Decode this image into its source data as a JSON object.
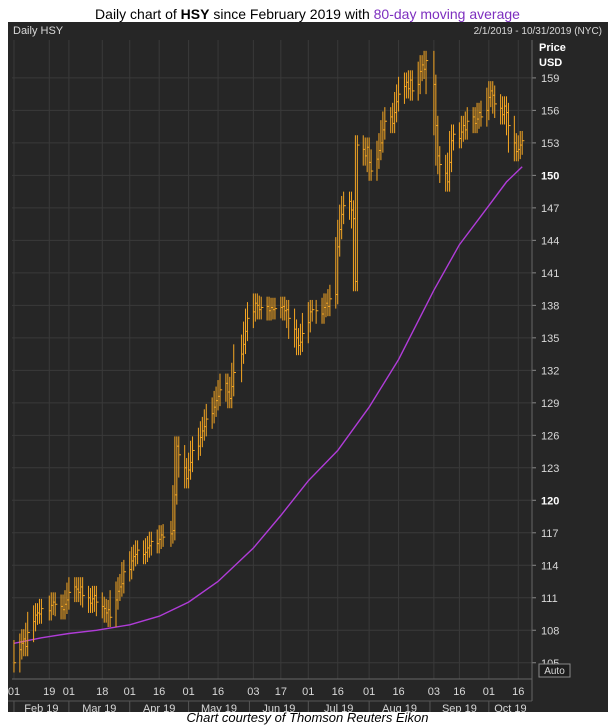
{
  "title": {
    "prefix": "Daily chart of ",
    "ticker": "HSY",
    "middle": " since February 2019 with ",
    "ma_label": "80-day moving average"
  },
  "panel": {
    "label": "Daily HSY",
    "range": "2/1/2019 - 10/31/2019 (NYC)",
    "currency_top": "Price",
    "currency_bottom": "USD",
    "auto": "Auto"
  },
  "caption": "Chart courtesy of Thomson Reuters Eikon",
  "colors": {
    "price": "#f5a623",
    "ma": "#b03cd8",
    "grid": "#3a3a3a",
    "bg": "#262626",
    "text": "#d8d8d8"
  },
  "chart_data": {
    "type": "line",
    "title": "Daily chart of HSY since February 2019 with 80-day moving average",
    "xlabel": "",
    "ylabel": "Price USD",
    "ylim": [
      103.5,
      162.5
    ],
    "y_ticks": [
      105,
      108,
      111,
      114,
      117,
      120,
      123,
      126,
      129,
      132,
      135,
      138,
      141,
      144,
      147,
      150,
      153,
      156,
      159
    ],
    "y_bold_ticks": [
      120,
      150
    ],
    "x_ticks": [
      {
        "date": "2019-02-01",
        "label": "01"
      },
      {
        "date": "2019-02-19",
        "label": "19"
      },
      {
        "date": "2019-03-01",
        "label": "01"
      },
      {
        "date": "2019-03-18",
        "label": "18"
      },
      {
        "date": "2019-04-01",
        "label": "01"
      },
      {
        "date": "2019-04-16",
        "label": "16"
      },
      {
        "date": "2019-05-01",
        "label": "01"
      },
      {
        "date": "2019-05-16",
        "label": "16"
      },
      {
        "date": "2019-06-03",
        "label": "03"
      },
      {
        "date": "2019-06-17",
        "label": "17"
      },
      {
        "date": "2019-07-01",
        "label": "01"
      },
      {
        "date": "2019-07-16",
        "label": "16"
      },
      {
        "date": "2019-08-01",
        "label": "01"
      },
      {
        "date": "2019-08-16",
        "label": "16"
      },
      {
        "date": "2019-09-03",
        "label": "03"
      },
      {
        "date": "2019-09-16",
        "label": "16"
      },
      {
        "date": "2019-10-01",
        "label": "01"
      },
      {
        "date": "2019-10-16",
        "label": "16"
      }
    ],
    "months": [
      {
        "date": "2019-02-01",
        "label": "Feb 19"
      },
      {
        "date": "2019-03-01",
        "label": "Mar 19"
      },
      {
        "date": "2019-04-01",
        "label": "Apr 19"
      },
      {
        "date": "2019-05-01",
        "label": "May 19"
      },
      {
        "date": "2019-06-01",
        "label": "Jun 19"
      },
      {
        "date": "2019-07-01",
        "label": "Jul 19"
      },
      {
        "date": "2019-08-01",
        "label": "Aug 19"
      },
      {
        "date": "2019-09-01",
        "label": "Sep 19"
      },
      {
        "date": "2019-10-01",
        "label": "Oct 19"
      }
    ],
    "series": [
      {
        "style": "bars",
        "points": [
          [
            "2019-02-01",
            105.0
          ],
          [
            "2019-02-04",
            106.2
          ],
          [
            "2019-02-05",
            106.8
          ],
          [
            "2019-02-06",
            107.2
          ],
          [
            "2019-02-07",
            106.5
          ],
          [
            "2019-02-08",
            107.8
          ],
          [
            "2019-02-11",
            108.8
          ],
          [
            "2019-02-12",
            109.4
          ],
          [
            "2019-02-13",
            109.6
          ],
          [
            "2019-02-14",
            109.5
          ],
          [
            "2019-02-15",
            110.0
          ],
          [
            "2019-02-19",
            109.8
          ],
          [
            "2019-02-20",
            110.3
          ],
          [
            "2019-02-21",
            110.6
          ],
          [
            "2019-02-22",
            110.4
          ],
          [
            "2019-02-25",
            110.2
          ],
          [
            "2019-02-26",
            109.9
          ],
          [
            "2019-02-27",
            110.4
          ],
          [
            "2019-02-28",
            110.8
          ],
          [
            "2019-03-01",
            111.5
          ],
          [
            "2019-03-04",
            112.0
          ],
          [
            "2019-03-05",
            111.8
          ],
          [
            "2019-03-06",
            111.5
          ],
          [
            "2019-03-07",
            112.0
          ],
          [
            "2019-03-08",
            111.2
          ],
          [
            "2019-03-11",
            111.0
          ],
          [
            "2019-03-12",
            110.5
          ],
          [
            "2019-03-13",
            110.9
          ],
          [
            "2019-03-14",
            111.2
          ],
          [
            "2019-03-15",
            110.6
          ],
          [
            "2019-03-18",
            110.2
          ],
          [
            "2019-03-19",
            110.0
          ],
          [
            "2019-03-20",
            109.6
          ],
          [
            "2019-03-21",
            109.9
          ],
          [
            "2019-03-22",
            109.2
          ],
          [
            "2019-03-25",
            110.8
          ],
          [
            "2019-03-26",
            111.6
          ],
          [
            "2019-03-27",
            112.0
          ],
          [
            "2019-03-28",
            112.3
          ],
          [
            "2019-03-29",
            113.4
          ],
          [
            "2019-04-01",
            113.6
          ],
          [
            "2019-04-02",
            114.4
          ],
          [
            "2019-04-03",
            114.8
          ],
          [
            "2019-04-04",
            115.0
          ],
          [
            "2019-04-05",
            115.4
          ],
          [
            "2019-04-08",
            115.0
          ],
          [
            "2019-04-09",
            115.2
          ],
          [
            "2019-04-10",
            115.6
          ],
          [
            "2019-04-11",
            115.8
          ],
          [
            "2019-04-12",
            116.2
          ],
          [
            "2019-04-15",
            116.0
          ],
          [
            "2019-04-16",
            116.4
          ],
          [
            "2019-04-17",
            116.8
          ],
          [
            "2019-04-18",
            116.6
          ],
          [
            "2019-04-22",
            116.9
          ],
          [
            "2019-04-23",
            117.2
          ],
          [
            "2019-04-24",
            120.5
          ],
          [
            "2019-04-25",
            125.0
          ],
          [
            "2019-04-26",
            124.2
          ],
          [
            "2019-04-29",
            123.0
          ],
          [
            "2019-04-30",
            122.0
          ],
          [
            "2019-05-01",
            122.8
          ],
          [
            "2019-05-02",
            123.5
          ],
          [
            "2019-05-03",
            124.6
          ],
          [
            "2019-05-06",
            125.0
          ],
          [
            "2019-05-07",
            125.8
          ],
          [
            "2019-05-08",
            126.4
          ],
          [
            "2019-05-09",
            126.8
          ],
          [
            "2019-05-10",
            127.5
          ],
          [
            "2019-05-13",
            128.0
          ],
          [
            "2019-05-14",
            128.6
          ],
          [
            "2019-05-15",
            129.2
          ],
          [
            "2019-05-16",
            129.6
          ],
          [
            "2019-05-17",
            130.2
          ],
          [
            "2019-05-20",
            130.8
          ],
          [
            "2019-05-21",
            130.0
          ],
          [
            "2019-05-22",
            129.4
          ],
          [
            "2019-05-23",
            130.5
          ],
          [
            "2019-05-24",
            131.8
          ],
          [
            "2019-05-28",
            133.5
          ],
          [
            "2019-05-29",
            134.4
          ],
          [
            "2019-05-30",
            135.6
          ],
          [
            "2019-05-31",
            136.8
          ],
          [
            "2019-06-03",
            137.4
          ],
          [
            "2019-06-04",
            138.2
          ],
          [
            "2019-06-05",
            138.0
          ],
          [
            "2019-06-06",
            137.6
          ],
          [
            "2019-06-07",
            137.8
          ],
          [
            "2019-06-10",
            137.9
          ],
          [
            "2019-06-11",
            137.5
          ],
          [
            "2019-06-12",
            137.8
          ],
          [
            "2019-06-13",
            137.6
          ],
          [
            "2019-06-14",
            137.7
          ],
          [
            "2019-06-17",
            137.8
          ],
          [
            "2019-06-18",
            137.9
          ],
          [
            "2019-06-19",
            137.5
          ],
          [
            "2019-06-20",
            137.6
          ],
          [
            "2019-06-21",
            136.8
          ],
          [
            "2019-06-24",
            135.8
          ],
          [
            "2019-06-25",
            135.0
          ],
          [
            "2019-06-26",
            134.3
          ],
          [
            "2019-06-27",
            134.6
          ],
          [
            "2019-06-28",
            135.4
          ],
          [
            "2019-07-01",
            136.4
          ],
          [
            "2019-07-02",
            137.4
          ],
          [
            "2019-07-03",
            137.6
          ],
          [
            "2019-07-05",
            137.5
          ],
          [
            "2019-07-08",
            137.2
          ],
          [
            "2019-07-09",
            137.8
          ],
          [
            "2019-07-10",
            138.2
          ],
          [
            "2019-07-11",
            137.9
          ],
          [
            "2019-07-12",
            138.6
          ],
          [
            "2019-07-15",
            139.0
          ],
          [
            "2019-07-16",
            143.4
          ],
          [
            "2019-07-17",
            145.0
          ],
          [
            "2019-07-18",
            146.4
          ],
          [
            "2019-07-19",
            147.2
          ],
          [
            "2019-07-22",
            147.6
          ],
          [
            "2019-07-23",
            146.8
          ],
          [
            "2019-07-24",
            146.0
          ],
          [
            "2019-07-25",
            140.2
          ],
          [
            "2019-07-26",
            152.8
          ],
          [
            "2019-07-29",
            152.4
          ],
          [
            "2019-07-30",
            151.8
          ],
          [
            "2019-07-31",
            152.6
          ],
          [
            "2019-08-01",
            151.2
          ],
          [
            "2019-08-02",
            150.4
          ],
          [
            "2019-08-05",
            151.5
          ],
          [
            "2019-08-06",
            152.3
          ],
          [
            "2019-08-07",
            153.0
          ],
          [
            "2019-08-08",
            154.2
          ],
          [
            "2019-08-09",
            155.0
          ],
          [
            "2019-08-12",
            155.4
          ],
          [
            "2019-08-13",
            154.8
          ],
          [
            "2019-08-14",
            155.8
          ],
          [
            "2019-08-15",
            156.8
          ],
          [
            "2019-08-16",
            157.5
          ],
          [
            "2019-08-19",
            158.2
          ],
          [
            "2019-08-20",
            158.6
          ],
          [
            "2019-08-21",
            158.0
          ],
          [
            "2019-08-22",
            158.8
          ],
          [
            "2019-08-23",
            157.8
          ],
          [
            "2019-08-26",
            158.4
          ],
          [
            "2019-08-27",
            159.6
          ],
          [
            "2019-08-28",
            160.2
          ],
          [
            "2019-08-29",
            159.8
          ],
          [
            "2019-08-30",
            160.6
          ],
          [
            "2019-09-03",
            158.4
          ],
          [
            "2019-09-04",
            154.6
          ],
          [
            "2019-09-05",
            151.8
          ],
          [
            "2019-09-06",
            151.0
          ],
          [
            "2019-09-09",
            150.2
          ],
          [
            "2019-09-10",
            149.4
          ],
          [
            "2019-09-11",
            151.2
          ],
          [
            "2019-09-12",
            153.2
          ],
          [
            "2019-09-13",
            153.8
          ],
          [
            "2019-09-16",
            153.4
          ],
          [
            "2019-09-17",
            154.0
          ],
          [
            "2019-09-18",
            154.6
          ],
          [
            "2019-09-19",
            154.2
          ],
          [
            "2019-09-20",
            155.0
          ],
          [
            "2019-09-23",
            155.4
          ],
          [
            "2019-09-24",
            154.8
          ],
          [
            "2019-09-25",
            155.2
          ],
          [
            "2019-09-26",
            155.8
          ],
          [
            "2019-09-27",
            155.4
          ],
          [
            "2019-09-30",
            156.0
          ],
          [
            "2019-10-01",
            157.2
          ],
          [
            "2019-10-02",
            157.8
          ],
          [
            "2019-10-03",
            157.4
          ],
          [
            "2019-10-04",
            156.6
          ],
          [
            "2019-10-07",
            156.2
          ],
          [
            "2019-10-08",
            155.6
          ],
          [
            "2019-10-09",
            156.4
          ],
          [
            "2019-10-10",
            155.8
          ],
          [
            "2019-10-11",
            154.6
          ],
          [
            "2019-10-14",
            153.0
          ],
          [
            "2019-10-15",
            152.2
          ],
          [
            "2019-10-16",
            152.4
          ],
          [
            "2019-10-17",
            152.8
          ],
          [
            "2019-10-18",
            153.2
          ]
        ]
      },
      {
        "name": "80-day moving average",
        "style": "line",
        "points": [
          [
            "2019-02-01",
            106.8
          ],
          [
            "2019-02-15",
            107.3
          ],
          [
            "2019-03-01",
            107.7
          ],
          [
            "2019-03-15",
            108.0
          ],
          [
            "2019-04-01",
            108.5
          ],
          [
            "2019-04-16",
            109.3
          ],
          [
            "2019-05-01",
            110.6
          ],
          [
            "2019-05-16",
            112.5
          ],
          [
            "2019-06-03",
            115.6
          ],
          [
            "2019-06-17",
            118.6
          ],
          [
            "2019-07-01",
            121.8
          ],
          [
            "2019-07-16",
            124.6
          ],
          [
            "2019-08-01",
            128.6
          ],
          [
            "2019-08-16",
            133.0
          ],
          [
            "2019-09-03",
            139.4
          ],
          [
            "2019-09-16",
            143.6
          ],
          [
            "2019-10-01",
            147.2
          ],
          [
            "2019-10-10",
            149.4
          ],
          [
            "2019-10-18",
            150.8
          ]
        ]
      }
    ]
  }
}
